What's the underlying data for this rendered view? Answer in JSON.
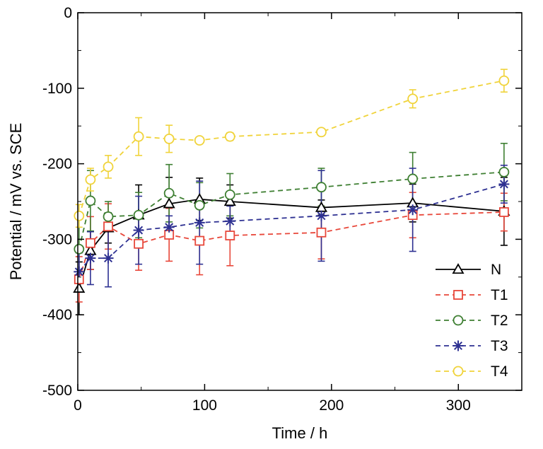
{
  "chart_data": {
    "type": "line",
    "xlabel": "Time / h",
    "ylabel": "Potential / mV vs. SCE",
    "xlim": [
      0,
      350
    ],
    "ylim": [
      -500,
      0
    ],
    "xticks": [
      "0",
      "100",
      "200",
      "300"
    ],
    "yticks": [
      "0",
      "-100",
      "-200",
      "-300",
      "-400",
      "-500"
    ],
    "grid": false,
    "legend_position": "bottom-right",
    "x": [
      1,
      10,
      24,
      48,
      72,
      96,
      120,
      192,
      264,
      336
    ],
    "series": [
      {
        "name": "N",
        "marker": "triangle",
        "color": "#000000",
        "dash": "solid",
        "values": [
          -365,
          -315,
          -285,
          -268,
          -253,
          -247,
          -250,
          -258,
          -252,
          -263
        ],
        "errors": [
          35,
          25,
          20,
          40,
          35,
          28,
          22,
          10,
          25,
          45
        ]
      },
      {
        "name": "T1",
        "marker": "square",
        "color": "#e8473a",
        "dash": "dashed",
        "values": [
          -353,
          -305,
          -283,
          -306,
          -294,
          -302,
          -295,
          -291,
          -268,
          -264
        ],
        "errors": [
          30,
          35,
          30,
          35,
          35,
          45,
          40,
          35,
          30,
          25
        ]
      },
      {
        "name": "T2",
        "marker": "circle",
        "color": "#3e7f32",
        "dash": "dashed",
        "values": [
          -313,
          -249,
          -270,
          -268,
          -239,
          -255,
          -241,
          -231,
          -220,
          -211
        ],
        "errors": [
          40,
          40,
          20,
          30,
          38,
          30,
          28,
          25,
          35,
          38
        ]
      },
      {
        "name": "T3",
        "marker": "asterisk",
        "color": "#2e3192",
        "dash": "dashed",
        "values": [
          -343,
          -325,
          -325,
          -288,
          -284,
          -278,
          -276,
          -269,
          -261,
          -227
        ],
        "errors": [
          25,
          35,
          38,
          45,
          15,
          55,
          20,
          60,
          55,
          25
        ]
      },
      {
        "name": "T4",
        "marker": "circle",
        "color": "#f0d33a",
        "dash": "dashed",
        "values": [
          -269,
          -221,
          -204,
          -164,
          -167,
          -169,
          -164,
          -158,
          -114,
          -90
        ],
        "errors": [
          15,
          15,
          15,
          25,
          18,
          3,
          5,
          3,
          12,
          15
        ]
      }
    ]
  }
}
